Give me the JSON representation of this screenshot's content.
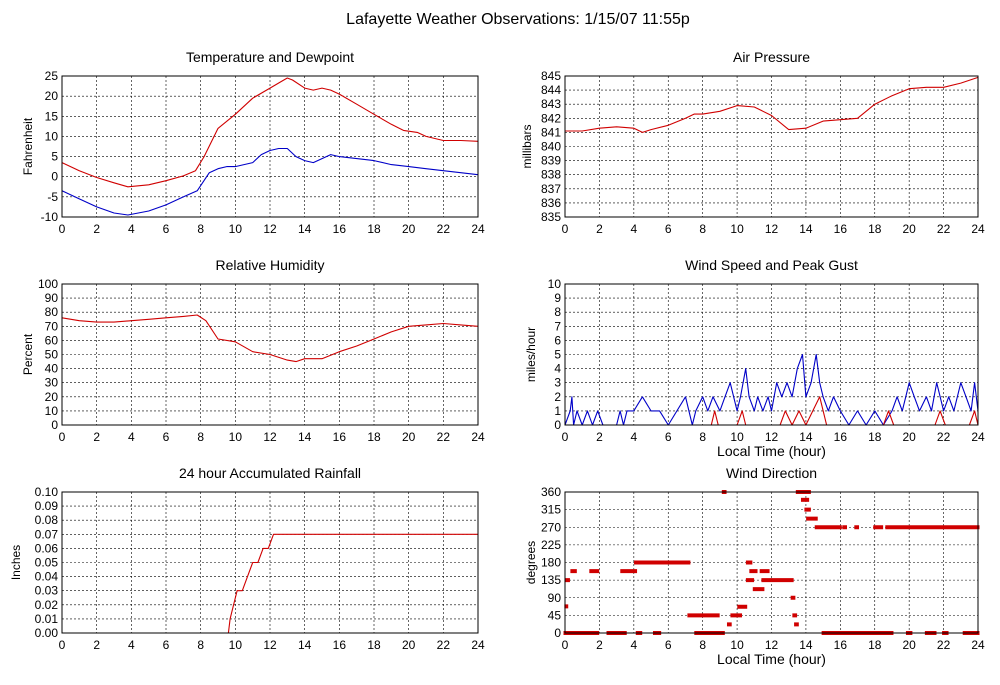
{
  "page": {
    "title": "Lafayette Weather Observations: 1/15/07 11:55p"
  },
  "colors": {
    "red": "#d00000",
    "blue": "#0000c8"
  },
  "chart_data": [
    {
      "id": "temperature",
      "type": "line",
      "title": "Temperature and Dewpoint",
      "xlabel": "",
      "ylabel": "Fahrenheit",
      "xlim": [
        0,
        24
      ],
      "ylim": [
        -10,
        25
      ],
      "xticks": [
        0,
        2,
        4,
        6,
        8,
        10,
        12,
        14,
        16,
        18,
        20,
        22,
        24
      ],
      "yticks": [
        -10,
        -5,
        0,
        5,
        10,
        15,
        20,
        25
      ],
      "grid": true,
      "series": [
        {
          "color": "#d00000",
          "x": [
            0,
            1,
            2,
            3,
            3.8,
            5,
            6,
            7,
            7.7,
            8.2,
            9,
            10,
            11,
            12,
            12.6,
            13,
            13.3,
            14,
            14.5,
            15,
            15.5,
            16,
            17,
            18,
            19,
            19.7,
            20.5,
            21,
            22,
            23,
            24
          ],
          "y": [
            3.5,
            1.5,
            -0.2,
            -1.5,
            -2.5,
            -2,
            -1,
            0.2,
            1.5,
            5,
            12,
            15.5,
            19.5,
            22,
            23.5,
            24.5,
            24,
            22,
            21.5,
            22,
            21.5,
            20.5,
            18,
            15.5,
            13,
            11.5,
            11,
            10,
            9,
            9,
            8.8
          ]
        },
        {
          "color": "#0000c8",
          "x": [
            0,
            1,
            2,
            3,
            3.8,
            5,
            6,
            7,
            7.8,
            8.5,
            9,
            9.5,
            10,
            11,
            11.5,
            12,
            12.5,
            13,
            13.5,
            14,
            14.5,
            15,
            15.5,
            16,
            17,
            18,
            19,
            20,
            21,
            22,
            23,
            24
          ],
          "y": [
            -3.5,
            -5.5,
            -7.5,
            -9,
            -9.5,
            -8.5,
            -7,
            -5,
            -3.5,
            1,
            2,
            2.5,
            2.5,
            3.5,
            5.5,
            6.5,
            7,
            7,
            5,
            4,
            3.5,
            4.5,
            5.5,
            5,
            4.5,
            4,
            3,
            2.5,
            2,
            1.5,
            1,
            0.5
          ]
        }
      ]
    },
    {
      "id": "pressure",
      "type": "line",
      "title": "Air Pressure",
      "xlabel": "",
      "ylabel": "millibars",
      "xlim": [
        0,
        24
      ],
      "ylim": [
        835,
        845
      ],
      "xticks": [
        0,
        2,
        4,
        6,
        8,
        10,
        12,
        14,
        16,
        18,
        20,
        22,
        24
      ],
      "yticks": [
        835,
        836,
        837,
        838,
        839,
        840,
        841,
        842,
        843,
        844,
        845
      ],
      "grid": true,
      "series": [
        {
          "color": "#d00000",
          "x": [
            0,
            1,
            2,
            3,
            4,
            4.5,
            5,
            6,
            7,
            7.5,
            8,
            9,
            10,
            11,
            12,
            13,
            14,
            15,
            16,
            17,
            17.5,
            18,
            19,
            20,
            21,
            22,
            23,
            24
          ],
          "y": [
            841.1,
            841.1,
            841.3,
            841.4,
            841.3,
            841.0,
            841.2,
            841.5,
            842.0,
            842.3,
            842.3,
            842.5,
            842.9,
            842.8,
            842.2,
            841.2,
            841.3,
            841.8,
            841.9,
            842.0,
            842.5,
            843.0,
            843.6,
            844.1,
            844.2,
            844.2,
            844.5,
            844.9
          ]
        }
      ]
    },
    {
      "id": "humidity",
      "type": "line",
      "title": "Relative Humidity",
      "xlabel": "",
      "ylabel": "Percent",
      "xlim": [
        0,
        24
      ],
      "ylim": [
        0,
        100
      ],
      "xticks": [
        0,
        2,
        4,
        6,
        8,
        10,
        12,
        14,
        16,
        18,
        20,
        22,
        24
      ],
      "yticks": [
        0,
        10,
        20,
        30,
        40,
        50,
        60,
        70,
        80,
        90,
        100
      ],
      "grid": true,
      "series": [
        {
          "color": "#d00000",
          "x": [
            0,
            1,
            2,
            3,
            4,
            5,
            6,
            7,
            7.8,
            8.3,
            9,
            10,
            11,
            12,
            13,
            13.5,
            14,
            15,
            16,
            17,
            18,
            19,
            20,
            21,
            22,
            23,
            24
          ],
          "y": [
            76,
            74,
            73,
            73,
            74,
            75,
            76,
            77,
            78,
            74,
            61,
            59,
            52,
            50,
            46,
            45,
            47,
            47,
            52,
            56,
            61,
            66,
            70,
            71,
            72,
            71,
            70
          ]
        }
      ]
    },
    {
      "id": "wind-speed",
      "type": "line",
      "title": "Wind Speed and Peak Gust",
      "xlabel": "Local Time (hour)",
      "ylabel": "miles/hour",
      "xlim": [
        0,
        24
      ],
      "ylim": [
        0,
        10
      ],
      "xticks": [
        0,
        2,
        4,
        6,
        8,
        10,
        12,
        14,
        16,
        18,
        20,
        22,
        24
      ],
      "yticks": [
        0,
        1,
        2,
        3,
        4,
        5,
        6,
        7,
        8,
        9,
        10
      ],
      "grid": true,
      "series": [
        {
          "color": "#0000c8",
          "x": [
            0,
            0.3,
            0.4,
            0.5,
            0.7,
            1.0,
            1.3,
            1.6,
            1.9,
            2.2,
            3.0,
            3.2,
            3.4,
            3.6,
            4.0,
            4.5,
            5.0,
            5.5,
            6.0,
            6.5,
            7.0,
            7.2,
            7.4,
            7.6,
            8.0,
            8.3,
            8.6,
            9.0,
            9.3,
            9.6,
            10.0,
            10.2,
            10.5,
            10.7,
            11.0,
            11.2,
            11.5,
            11.8,
            12.0,
            12.3,
            12.6,
            12.9,
            13.2,
            13.5,
            13.8,
            14.0,
            14.3,
            14.6,
            14.8,
            15.0,
            15.3,
            15.6,
            16.0,
            16.5,
            17.0,
            17.5,
            18.0,
            18.5,
            19.0,
            19.3,
            19.6,
            20.0,
            20.3,
            20.6,
            21.0,
            21.3,
            21.6,
            22.0,
            22.3,
            22.6,
            23.0,
            23.3,
            23.6,
            23.8,
            24.0
          ],
          "y": [
            0,
            1,
            2,
            0,
            1,
            0,
            1,
            0,
            1,
            0,
            0,
            1,
            0,
            1,
            1,
            2,
            1,
            1,
            0,
            1,
            2,
            1,
            0,
            1,
            2,
            1,
            2,
            1,
            2,
            3,
            1,
            2,
            4,
            2,
            1,
            2,
            1,
            2,
            1,
            3,
            2,
            3,
            2,
            4,
            5,
            2,
            3,
            5,
            3,
            2,
            1,
            2,
            1,
            0,
            1,
            0,
            1,
            0,
            1,
            2,
            1,
            3,
            2,
            1,
            2,
            1,
            3,
            1,
            2,
            1,
            3,
            2,
            1,
            3,
            1
          ]
        },
        {
          "color": "#d00000",
          "x": [
            0,
            8.5,
            8.7,
            8.9,
            9.5,
            10.0,
            10.3,
            10.5,
            11.0,
            12.5,
            12.8,
            13.2,
            13.6,
            14.0,
            14.4,
            14.8,
            15.2,
            18.5,
            18.8,
            19.1,
            21.5,
            21.8,
            22.1,
            23.5,
            23.8,
            24.0
          ],
          "y": [
            0,
            0,
            1,
            0,
            0,
            0,
            1,
            0,
            0,
            0,
            1,
            0,
            1,
            0,
            1,
            2,
            0,
            0,
            1,
            0,
            0,
            1,
            0,
            0,
            1,
            0
          ]
        }
      ]
    },
    {
      "id": "rainfall",
      "type": "line",
      "title": "24 hour Accumulated Rainfall",
      "xlabel": "",
      "ylabel": "Inches",
      "xlim": [
        0,
        24
      ],
      "ylim": [
        0,
        0.1
      ],
      "xticks": [
        0,
        2,
        4,
        6,
        8,
        10,
        12,
        14,
        16,
        18,
        20,
        22,
        24
      ],
      "yticks": [
        "0.00",
        "0.01",
        "0.02",
        "0.03",
        "0.04",
        "0.05",
        "0.06",
        "0.07",
        "0.08",
        "0.09",
        "0.10"
      ],
      "grid": true,
      "series": [
        {
          "color": "#d00000",
          "x": [
            0,
            9.6,
            9.7,
            9.9,
            10.1,
            10.4,
            10.7,
            11.0,
            11.3,
            11.6,
            11.9,
            12.2,
            24
          ],
          "y": [
            0,
            0,
            0.01,
            0.02,
            0.03,
            0.03,
            0.04,
            0.05,
            0.05,
            0.06,
            0.06,
            0.07,
            0.07
          ]
        }
      ]
    },
    {
      "id": "wind-direction",
      "type": "scatter",
      "title": "Wind Direction",
      "xlabel": "Local Time (hour)",
      "ylabel": "degrees",
      "xlim": [
        0,
        24
      ],
      "ylim": [
        0,
        360
      ],
      "xticks": [
        0,
        2,
        4,
        6,
        8,
        10,
        12,
        14,
        16,
        18,
        20,
        22,
        24
      ],
      "yticks": [
        0,
        45,
        90,
        135,
        180,
        225,
        270,
        315,
        360
      ],
      "grid": true,
      "series": [
        {
          "color": "#d00000",
          "segments": [
            {
              "x": [
                0,
                1.9
              ],
              "y": 0
            },
            {
              "x": [
                0.1,
                0.2
              ],
              "y": 135
            },
            {
              "x": [
                0.4,
                0.6
              ],
              "y": 158
            },
            {
              "x": [
                0.05,
                0.1
              ],
              "y": 68
            },
            {
              "x": [
                1.5,
                1.9
              ],
              "y": 158
            },
            {
              "x": [
                2.5,
                3.5
              ],
              "y": 0
            },
            {
              "x": [
                3.3,
                4.1
              ],
              "y": 158
            },
            {
              "x": [
                4.1,
                7.2
              ],
              "y": 180
            },
            {
              "x": [
                4.2,
                4.4
              ],
              "y": 0
            },
            {
              "x": [
                5.2,
                5.5
              ],
              "y": 0
            },
            {
              "x": [
                7.2,
                8.9
              ],
              "y": 45
            },
            {
              "x": [
                7.6,
                9.2
              ],
              "y": 0
            },
            {
              "x": [
                9.2,
                9.3
              ],
              "y": 360
            },
            {
              "x": [
                9.5,
                9.6
              ],
              "y": 22
            },
            {
              "x": [
                9.7,
                10.2
              ],
              "y": 45
            },
            {
              "x": [
                10.1,
                10.5
              ],
              "y": 67
            },
            {
              "x": [
                10.6,
                10.8
              ],
              "y": 180
            },
            {
              "x": [
                10.8,
                11.1
              ],
              "y": 158
            },
            {
              "x": [
                10.6,
                10.9
              ],
              "y": 135
            },
            {
              "x": [
                11.0,
                11.5
              ],
              "y": 112
            },
            {
              "x": [
                11.4,
                11.8
              ],
              "y": 158
            },
            {
              "x": [
                11.5,
                13.2
              ],
              "y": 135
            },
            {
              "x": [
                13.2,
                13.3
              ],
              "y": 90
            },
            {
              "x": [
                13.3,
                13.4
              ],
              "y": 45
            },
            {
              "x": [
                13.4,
                13.5
              ],
              "y": 22
            },
            {
              "x": [
                13.5,
                14.2
              ],
              "y": 360
            },
            {
              "x": [
                13.8,
                14.1
              ],
              "y": 340
            },
            {
              "x": [
                14.0,
                14.2
              ],
              "y": 315
            },
            {
              "x": [
                14.1,
                14.6
              ],
              "y": 292
            },
            {
              "x": [
                14.6,
                16.0
              ],
              "y": 270
            },
            {
              "x": [
                15.0,
                19.0
              ],
              "y": 0
            },
            {
              "x": [
                16.2,
                16.3
              ],
              "y": 270
            },
            {
              "x": [
                16.9,
                17.0
              ],
              "y": 270
            },
            {
              "x": [
                18.0,
                18.4
              ],
              "y": 270
            },
            {
              "x": [
                18.7,
                24.0
              ],
              "y": 270
            },
            {
              "x": [
                19.9,
                20.1
              ],
              "y": 0
            },
            {
              "x": [
                21.0,
                21.5
              ],
              "y": 0
            },
            {
              "x": [
                22.0,
                22.2
              ],
              "y": 0
            },
            {
              "x": [
                23.2,
                24.0
              ],
              "y": 0
            }
          ]
        }
      ]
    }
  ]
}
